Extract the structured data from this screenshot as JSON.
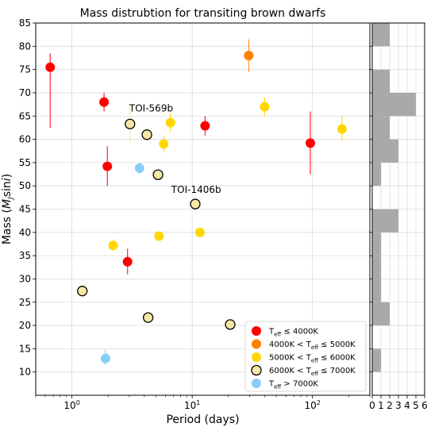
{
  "chart_data": {
    "type": "scatter",
    "title": "Mass distrubtion for transiting brown dwarfs",
    "xlabel": "Period (days)",
    "ylabel": "Mass (MJsini)",
    "xscale": "log",
    "xlim": [
      0.5,
      300
    ],
    "ylim": [
      5,
      85
    ],
    "grid": true,
    "x_ticks": [
      {
        "value": 1,
        "label": "10",
        "sup": "0"
      },
      {
        "value": 10,
        "label": "10",
        "sup": "1"
      },
      {
        "value": 100,
        "label": "10",
        "sup": "2"
      }
    ],
    "y_ticks": [
      10,
      15,
      20,
      25,
      30,
      35,
      40,
      45,
      50,
      55,
      60,
      65,
      70,
      75,
      80,
      85
    ],
    "colors": {
      "cool": "#ff0000",
      "k": "#ff8000",
      "g": "#ffd700",
      "f": "#f5e7a6",
      "hot": "#87cefa",
      "hist": "#a9a9a9"
    },
    "series": [
      {
        "name": "Teff ≤ 4000K",
        "legend_main": "T",
        "legend_sub": "eff",
        "legend_rest": " ≤ 4000K",
        "color_key": "cool",
        "points": [
          {
            "x": 0.66,
            "y": 75.5,
            "ylo": 62.5,
            "yhi": 78.5
          },
          {
            "x": 1.85,
            "y": 68.0,
            "ylo": 66.0,
            "yhi": 70.0
          },
          {
            "x": 1.97,
            "y": 54.2,
            "ylo": 50.0,
            "yhi": 58.5
          },
          {
            "x": 2.9,
            "y": 33.7,
            "ylo": 31.0,
            "yhi": 36.5
          },
          {
            "x": 12.8,
            "y": 62.9,
            "ylo": 60.8,
            "yhi": 65.0
          },
          {
            "x": 96.0,
            "y": 59.2,
            "ylo": 52.5,
            "yhi": 66.0
          }
        ]
      },
      {
        "name": "4000K < Teff ≤ 5000K",
        "legend_main": "4000K < T",
        "legend_sub": "eff",
        "legend_rest": " ≤ 5000K",
        "color_key": "k",
        "points": [
          {
            "x": 29.5,
            "y": 78.0,
            "ylo": 74.5,
            "yhi": 81.5
          }
        ]
      },
      {
        "name": "5000K < Teff ≤ 6000K",
        "legend_main": "5000K < T",
        "legend_sub": "eff",
        "legend_rest": " ≤ 6000K",
        "color_key": "g",
        "points": [
          {
            "x": 2.2,
            "y": 37.2,
            "ylo": 36.0,
            "yhi": 38.4
          },
          {
            "x": 5.3,
            "y": 39.2,
            "ylo": 38.2,
            "yhi": 40.2
          },
          {
            "x": 5.8,
            "y": 59.0,
            "ylo": 57.2,
            "yhi": 60.8
          },
          {
            "x": 6.6,
            "y": 63.6,
            "ylo": 61.5,
            "yhi": 65.7
          },
          {
            "x": 11.6,
            "y": 40.0,
            "ylo": 39.0,
            "yhi": 41.0
          },
          {
            "x": 40.0,
            "y": 67.0,
            "ylo": 65.0,
            "yhi": 69.0
          },
          {
            "x": 176.0,
            "y": 62.2,
            "ylo": 59.5,
            "yhi": 65.0
          }
        ]
      },
      {
        "name": "6000K < Teff ≤ 7000K",
        "legend_main": "6000K < T",
        "legend_sub": "eff",
        "legend_rest": " ≤ 7000K",
        "color_key": "f",
        "points": [
          {
            "x": 1.22,
            "y": 27.4,
            "ylo": 26.5,
            "yhi": 28.3
          },
          {
            "x": 3.04,
            "y": 63.3,
            "ylo": 59.5,
            "yhi": 67.5
          },
          {
            "x": 4.2,
            "y": 61.0,
            "ylo": 59.5,
            "yhi": 62.5
          },
          {
            "x": 4.3,
            "y": 21.7,
            "ylo": 20.8,
            "yhi": 22.6
          },
          {
            "x": 5.2,
            "y": 52.4,
            "ylo": 51.2,
            "yhi": 53.6
          },
          {
            "x": 10.6,
            "y": 46.1,
            "ylo": 44.0,
            "yhi": 48.2
          },
          {
            "x": 20.7,
            "y": 20.2,
            "ylo": 19.4,
            "yhi": 21.0
          }
        ]
      },
      {
        "name": "Teff > 7000K",
        "legend_main": "T",
        "legend_sub": "eff",
        "legend_rest": " > 7000K",
        "color_key": "hot",
        "points": [
          {
            "x": 1.9,
            "y": 12.9,
            "ylo": 11.5,
            "yhi": 14.8
          },
          {
            "x": 3.65,
            "y": 53.8,
            "ylo": 52.6,
            "yhi": 55.0
          }
        ]
      }
    ],
    "annotations": [
      {
        "text": "TOI-569b",
        "x": 3.0,
        "y": 66.0
      },
      {
        "text": "TOI-1406b",
        "x": 6.7,
        "y": 48.5
      }
    ],
    "histogram": {
      "orientation": "horizontal",
      "xlim": [
        0,
        6
      ],
      "x_ticks": [
        0,
        1,
        2,
        3,
        4,
        5,
        6
      ],
      "bin_edges": [
        5,
        10,
        15,
        20,
        25,
        30,
        35,
        40,
        45,
        50,
        55,
        60,
        65,
        70,
        75,
        80,
        85
      ],
      "counts": [
        0,
        1,
        0,
        2,
        1,
        1,
        1,
        3,
        0,
        1,
        3,
        2,
        5,
        2,
        0,
        2
      ]
    }
  }
}
